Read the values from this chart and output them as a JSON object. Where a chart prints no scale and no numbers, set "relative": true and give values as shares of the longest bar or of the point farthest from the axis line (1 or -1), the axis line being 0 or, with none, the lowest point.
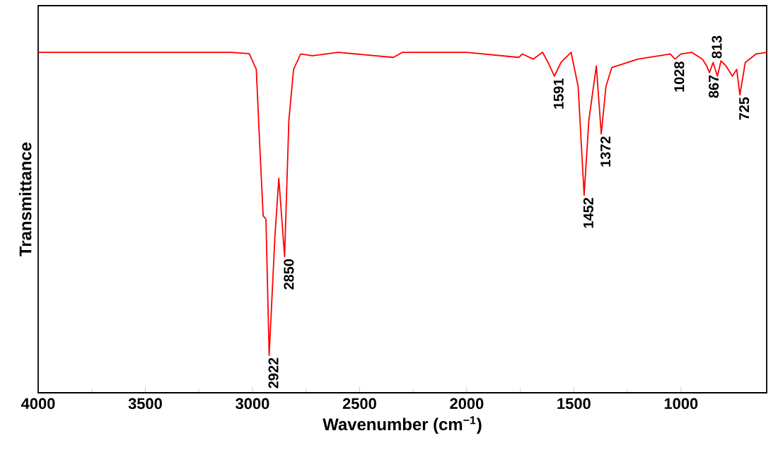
{
  "chart_data": {
    "type": "line",
    "xlabel": "Wavenumber (cm$^{−1}$)",
    "ylabel": "Transmittance",
    "relative": true,
    "xlim": [
      4000,
      600
    ],
    "xticks": [
      4000,
      3500,
      3000,
      2500,
      2000,
      1500,
      1000
    ],
    "grid": false,
    "marker": "none",
    "line_style": "solid",
    "series": [
      {
        "color": "#ff0000",
        "x": [
          4000,
          3500,
          3100,
          3015,
          2982,
          2967,
          2950,
          2937,
          2922,
          2895,
          2877,
          2850,
          2830,
          2808,
          2775,
          2720,
          2600,
          2342,
          2300,
          2000,
          1757,
          1740,
          1690,
          1646,
          1620,
          1591,
          1560,
          1513,
          1480,
          1452,
          1430,
          1395,
          1372,
          1350,
          1323,
          1200,
          1100,
          1050,
          1028,
          1000,
          950,
          900,
          880,
          867,
          850,
          830,
          813,
          790,
          760,
          740,
          725,
          700,
          650,
          600
        ],
        "values": [
          1.0,
          1.0,
          1.0,
          0.996,
          0.95,
          0.74,
          0.52,
          0.51,
          0.11,
          0.46,
          0.63,
          0.4,
          0.8,
          0.95,
          0.995,
          0.99,
          1.0,
          0.985,
          1.0,
          1.0,
          0.985,
          0.995,
          0.98,
          1.0,
          0.97,
          0.93,
          0.97,
          1.0,
          0.9,
          0.58,
          0.8,
          0.96,
          0.76,
          0.9,
          0.955,
          0.98,
          0.99,
          0.995,
          0.98,
          0.995,
          1.0,
          0.98,
          0.96,
          0.94,
          0.97,
          0.93,
          0.975,
          0.96,
          0.93,
          0.95,
          0.875,
          0.97,
          0.995,
          1.0
        ]
      }
    ],
    "annotations": [
      {
        "text": "2922",
        "x": 2922,
        "y": 0.11
      },
      {
        "text": "2850",
        "x": 2850,
        "y": 0.4
      },
      {
        "text": "1591",
        "x": 1591,
        "y": 0.93
      },
      {
        "text": "1452",
        "x": 1452,
        "y": 0.58
      },
      {
        "text": "1372",
        "x": 1372,
        "y": 0.76
      },
      {
        "text": "1028",
        "x": 1028,
        "y": 0.98
      },
      {
        "text": "867",
        "x": 867,
        "y": 0.94
      },
      {
        "text": "813",
        "x": 813,
        "y": 0.975
      },
      {
        "text": "725",
        "x": 725,
        "y": 0.875
      }
    ]
  }
}
